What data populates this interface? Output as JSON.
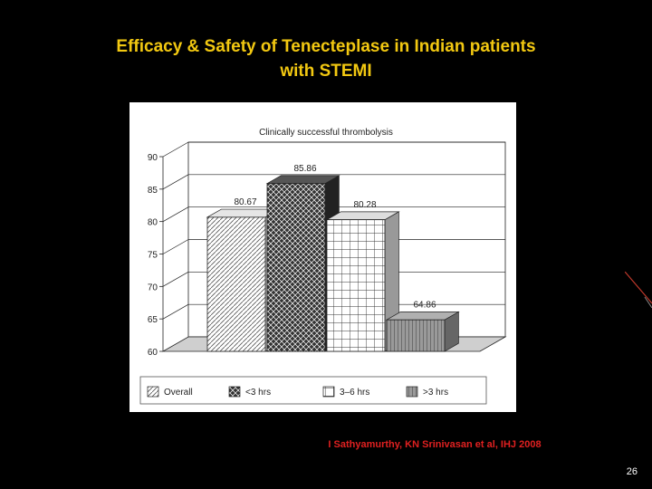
{
  "slide": {
    "title_line1": "Efficacy & Safety of Tenecteplase in Indian patients",
    "title_line2": "with STEMI",
    "citation": "I Sathyamurthy, KN Srinivasan et al, IHJ 2008",
    "page_number": "26"
  },
  "colors": {
    "background": "#000000",
    "title": "#f2c811",
    "citation": "#e02020"
  },
  "chart_data": {
    "type": "bar",
    "title": "Clinically successful thrombolysis",
    "categories": [
      "Overall",
      "<3 hrs",
      "3–6 hrs",
      ">3 hrs"
    ],
    "values": [
      80.67,
      85.86,
      80.28,
      64.86
    ],
    "value_labels": [
      "80.67",
      "85.86",
      "80.28",
      "64.86"
    ],
    "ylim": [
      60,
      90
    ],
    "yticks": [
      60,
      65,
      70,
      75,
      80,
      85,
      90
    ],
    "grid": true,
    "legend_position": "bottom",
    "style": "3d"
  }
}
